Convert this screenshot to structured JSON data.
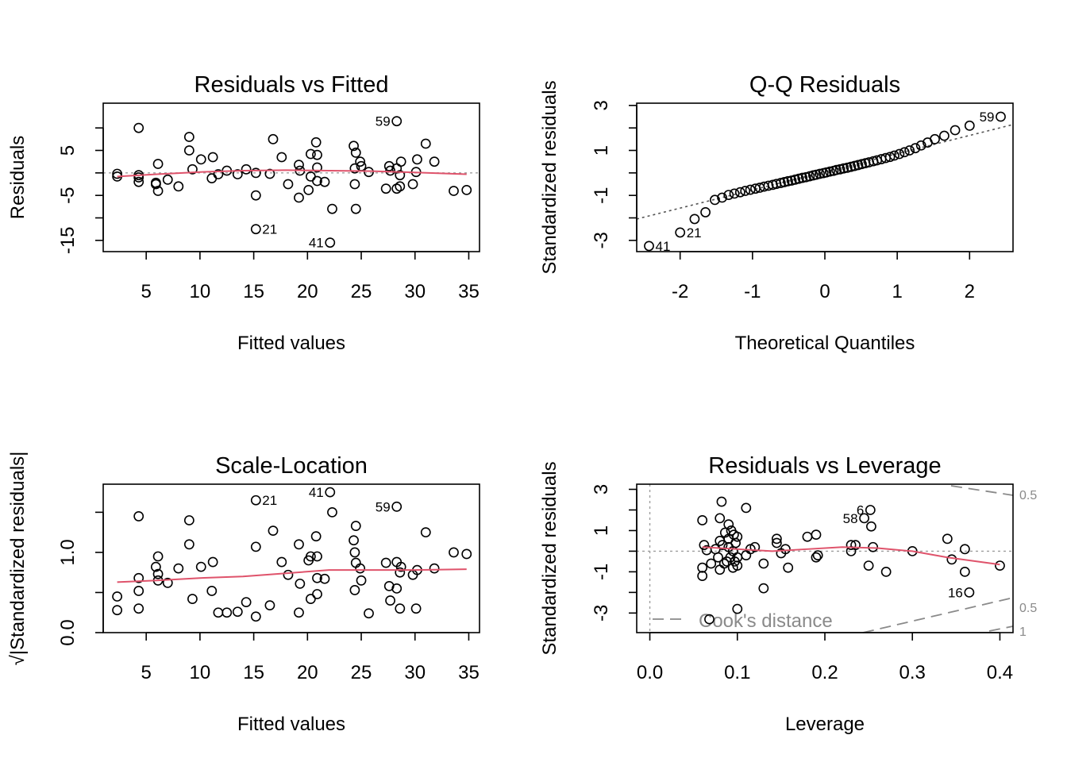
{
  "chart_data": [
    {
      "type": "scatter",
      "title": "Residuals vs Fitted",
      "xlabel": "Fitted values",
      "ylabel": "Residuals",
      "xlim": [
        1,
        36
      ],
      "ylim": [
        -17.5,
        15.5
      ],
      "xticks": [
        5,
        10,
        15,
        20,
        25,
        30,
        35
      ],
      "yticks": [
        -15,
        -10,
        -5,
        0,
        5,
        10
      ],
      "ytick_labels": [
        "-15",
        "",
        "-5",
        "",
        "5",
        ""
      ],
      "grid": false,
      "reference_line_y": 0,
      "points": [
        [
          2.3,
          -0.8
        ],
        [
          2.3,
          -0.2
        ],
        [
          4.3,
          10
        ],
        [
          4.3,
          -1
        ],
        [
          4.3,
          -2
        ],
        [
          4.3,
          -0.5
        ],
        [
          5.9,
          -2.5
        ],
        [
          5.9,
          -2.2
        ],
        [
          6.1,
          -4
        ],
        [
          6.1,
          2
        ],
        [
          7,
          -1.5
        ],
        [
          8,
          -3
        ],
        [
          9,
          8
        ],
        [
          9,
          5
        ],
        [
          9.3,
          0.8
        ],
        [
          10.1,
          3
        ],
        [
          11.1,
          -1.2
        ],
        [
          11.2,
          3.5
        ],
        [
          11.7,
          -0.3
        ],
        [
          12.5,
          0.5
        ],
        [
          13.5,
          -0.3
        ],
        [
          14.3,
          0.8
        ],
        [
          15.2,
          0
        ],
        [
          15.2,
          -5
        ],
        [
          16.5,
          -0.2
        ],
        [
          16.8,
          7.5
        ],
        [
          17.6,
          3.5
        ],
        [
          18.2,
          -2.5
        ],
        [
          19.2,
          -5.5
        ],
        [
          19.2,
          1.8
        ],
        [
          19.3,
          0.5
        ],
        [
          20.1,
          -3.8
        ],
        [
          20.3,
          4.2
        ],
        [
          20.3,
          -0.8
        ],
        [
          20.8,
          6.8
        ],
        [
          20.9,
          1.2
        ],
        [
          20.9,
          -1.8
        ],
        [
          20.9,
          4
        ],
        [
          21.6,
          -2
        ],
        [
          22.3,
          -8
        ],
        [
          24.3,
          6
        ],
        [
          24.4,
          1
        ],
        [
          24.4,
          -2.5
        ],
        [
          24.5,
          4.5
        ],
        [
          24.5,
          -8
        ],
        [
          24.9,
          2.5
        ],
        [
          25,
          1.5
        ],
        [
          25.7,
          0.2
        ],
        [
          27.3,
          -3.5
        ],
        [
          27.6,
          1.5
        ],
        [
          27.7,
          0.5
        ],
        [
          28.3,
          1
        ],
        [
          28.3,
          -3.5
        ],
        [
          28.6,
          -3
        ],
        [
          28.6,
          -0.5
        ],
        [
          28.7,
          2.5
        ],
        [
          29.8,
          -2.5
        ],
        [
          30.1,
          0.2
        ],
        [
          30.2,
          3
        ],
        [
          31,
          6.5
        ],
        [
          31.8,
          2.5
        ],
        [
          33.6,
          -4
        ],
        [
          34.8,
          -3.8
        ],
        [
          28.3,
          11.5
        ],
        [
          15.2,
          -12.5
        ],
        [
          22.1,
          -15.5
        ]
      ],
      "point_labels": [
        {
          "x": 28.3,
          "y": 11.5,
          "text": "59",
          "side": "left"
        },
        {
          "x": 15.2,
          "y": -12.5,
          "text": "21",
          "side": "right"
        },
        {
          "x": 22.1,
          "y": -15.5,
          "text": "41",
          "side": "left"
        }
      ],
      "smooth_line": {
        "x": [
          2.3,
          6,
          10,
          14,
          18,
          22,
          26,
          30,
          34.8
        ],
        "y": [
          -0.8,
          -0.3,
          0.2,
          0.5,
          0.6,
          0.5,
          0.4,
          0.1,
          -0.3
        ]
      }
    },
    {
      "type": "scatter",
      "title": "Q-Q Residuals",
      "xlabel": "Theoretical Quantiles",
      "ylabel": "Standardized residuals",
      "xlim": [
        -2.6,
        2.6
      ],
      "ylim": [
        -3.5,
        3.1
      ],
      "xticks": [
        -2,
        -1,
        0,
        1,
        2
      ],
      "yticks": [
        -3,
        -2,
        -1,
        0,
        1,
        2,
        3
      ],
      "ytick_labels": [
        "-3",
        "",
        "-1",
        "",
        "1",
        "",
        "3"
      ],
      "grid": false,
      "reference_line": {
        "x": [
          -2.6,
          2.6
        ],
        "y": [
          -2.05,
          2.15
        ]
      },
      "points": [
        [
          -2.43,
          -3.25
        ],
        [
          -2.0,
          -2.65
        ],
        [
          -1.8,
          -2.05
        ],
        [
          -1.65,
          -1.75
        ],
        [
          -1.52,
          -1.2
        ],
        [
          -1.42,
          -1.1
        ],
        [
          -1.33,
          -0.98
        ],
        [
          -1.25,
          -0.92
        ],
        [
          -1.17,
          -0.86
        ],
        [
          -1.1,
          -0.8
        ],
        [
          -1.03,
          -0.75
        ],
        [
          -0.96,
          -0.7
        ],
        [
          -0.9,
          -0.66
        ],
        [
          -0.84,
          -0.61
        ],
        [
          -0.78,
          -0.57
        ],
        [
          -0.72,
          -0.53
        ],
        [
          -0.67,
          -0.49
        ],
        [
          -0.61,
          -0.45
        ],
        [
          -0.56,
          -0.41
        ],
        [
          -0.51,
          -0.37
        ],
        [
          -0.46,
          -0.34
        ],
        [
          -0.41,
          -0.3
        ],
        [
          -0.36,
          -0.26
        ],
        [
          -0.31,
          -0.22
        ],
        [
          -0.26,
          -0.19
        ],
        [
          -0.21,
          -0.15
        ],
        [
          -0.16,
          -0.11
        ],
        [
          -0.12,
          -0.08
        ],
        [
          -0.07,
          -0.04
        ],
        [
          -0.02,
          -0.01
        ],
        [
          0.02,
          0.02
        ],
        [
          0.07,
          0.06
        ],
        [
          0.12,
          0.09
        ],
        [
          0.16,
          0.13
        ],
        [
          0.21,
          0.16
        ],
        [
          0.26,
          0.2
        ],
        [
          0.31,
          0.23
        ],
        [
          0.36,
          0.27
        ],
        [
          0.41,
          0.31
        ],
        [
          0.46,
          0.35
        ],
        [
          0.51,
          0.39
        ],
        [
          0.56,
          0.43
        ],
        [
          0.61,
          0.47
        ],
        [
          0.67,
          0.52
        ],
        [
          0.72,
          0.56
        ],
        [
          0.78,
          0.61
        ],
        [
          0.84,
          0.66
        ],
        [
          0.9,
          0.71
        ],
        [
          0.96,
          0.77
        ],
        [
          1.03,
          0.84
        ],
        [
          1.1,
          0.92
        ],
        [
          1.17,
          1.0
        ],
        [
          1.25,
          1.1
        ],
        [
          1.33,
          1.22
        ],
        [
          1.42,
          1.35
        ],
        [
          1.52,
          1.5
        ],
        [
          1.65,
          1.65
        ],
        [
          1.8,
          1.9
        ],
        [
          2.0,
          2.1
        ],
        [
          2.43,
          2.5
        ]
      ],
      "point_labels": [
        {
          "x": 2.43,
          "y": 2.5,
          "text": "59",
          "side": "left"
        },
        {
          "x": -2.0,
          "y": -2.65,
          "text": "21",
          "side": "right"
        },
        {
          "x": -2.43,
          "y": -3.25,
          "text": "41",
          "side": "right"
        }
      ]
    },
    {
      "type": "scatter",
      "title": "Scale-Location",
      "xlabel": "Fitted values",
      "ylabel": "√|Standardized residuals|",
      "xlim": [
        1,
        36
      ],
      "ylim": [
        0,
        1.85
      ],
      "xticks": [
        5,
        10,
        15,
        20,
        25,
        30,
        35
      ],
      "yticks": [
        0,
        0.5,
        1.0,
        1.5
      ],
      "ytick_labels": [
        "0.0",
        "",
        "1.0",
        ""
      ],
      "grid": false,
      "points": [
        [
          2.3,
          0.45
        ],
        [
          2.3,
          0.28
        ],
        [
          4.3,
          1.45
        ],
        [
          4.3,
          0.68
        ],
        [
          4.3,
          0.52
        ],
        [
          4.3,
          0.3
        ],
        [
          5.9,
          0.82
        ],
        [
          6.1,
          0.95
        ],
        [
          6.1,
          0.73
        ],
        [
          6.1,
          0.65
        ],
        [
          7,
          0.62
        ],
        [
          8,
          0.8
        ],
        [
          9,
          1.4
        ],
        [
          9,
          1.1
        ],
        [
          9.3,
          0.42
        ],
        [
          10.1,
          0.82
        ],
        [
          11.1,
          0.52
        ],
        [
          11.2,
          0.88
        ],
        [
          11.7,
          0.25
        ],
        [
          12.5,
          0.25
        ],
        [
          13.5,
          0.26
        ],
        [
          14.3,
          0.38
        ],
        [
          15.2,
          0.2
        ],
        [
          15.2,
          1.07
        ],
        [
          16.5,
          0.34
        ],
        [
          16.8,
          1.27
        ],
        [
          17.6,
          0.88
        ],
        [
          18.2,
          0.72
        ],
        [
          19.2,
          1.1
        ],
        [
          19.2,
          0.25
        ],
        [
          19.3,
          0.61
        ],
        [
          20.1,
          0.9
        ],
        [
          20.3,
          0.42
        ],
        [
          20.3,
          0.95
        ],
        [
          20.8,
          1.2
        ],
        [
          20.9,
          0.95
        ],
        [
          20.9,
          0.48
        ],
        [
          20.9,
          0.68
        ],
        [
          21.6,
          0.67
        ],
        [
          22.3,
          1.5
        ],
        [
          24.3,
          1.15
        ],
        [
          24.4,
          1.0
        ],
        [
          24.4,
          0.53
        ],
        [
          24.5,
          1.33
        ],
        [
          24.5,
          0.87
        ],
        [
          24.9,
          0.8
        ],
        [
          25,
          0.65
        ],
        [
          25.7,
          0.24
        ],
        [
          27.3,
          0.87
        ],
        [
          27.6,
          0.58
        ],
        [
          27.7,
          0.4
        ],
        [
          28.3,
          0.55
        ],
        [
          28.3,
          0.88
        ],
        [
          28.6,
          0.3
        ],
        [
          28.6,
          0.75
        ],
        [
          28.7,
          0.82
        ],
        [
          29.8,
          0.72
        ],
        [
          30.1,
          0.3
        ],
        [
          30.2,
          0.78
        ],
        [
          31,
          1.25
        ],
        [
          31.8,
          0.8
        ],
        [
          33.6,
          1.0
        ],
        [
          34.8,
          0.98
        ],
        [
          28.3,
          1.57
        ],
        [
          15.2,
          1.65
        ],
        [
          22.1,
          1.75
        ]
      ],
      "point_labels": [
        {
          "x": 28.3,
          "y": 1.57,
          "text": "59",
          "side": "left"
        },
        {
          "x": 15.2,
          "y": 1.65,
          "text": "21",
          "side": "right"
        },
        {
          "x": 22.1,
          "y": 1.75,
          "text": "41",
          "side": "left"
        }
      ],
      "smooth_line": {
        "x": [
          2.3,
          6,
          10,
          14,
          18,
          22,
          26,
          30,
          34.8
        ],
        "y": [
          0.63,
          0.65,
          0.68,
          0.7,
          0.74,
          0.78,
          0.78,
          0.78,
          0.79
        ]
      }
    },
    {
      "type": "scatter",
      "title": "Residuals vs Leverage",
      "xlabel": "Leverage",
      "ylabel": "Standardized residuals",
      "xlim": [
        -0.015,
        0.415
      ],
      "ylim": [
        -3.95,
        3.25
      ],
      "xticks": [
        0.0,
        0.1,
        0.2,
        0.3,
        0.4
      ],
      "xtick_labels": [
        "0.0",
        "0.1",
        "0.2",
        "0.3",
        "0.4"
      ],
      "yticks": [
        -3,
        -2,
        -1,
        0,
        1,
        2,
        3
      ],
      "ytick_labels": [
        "-3",
        "",
        "-1",
        "",
        "1",
        "",
        "3"
      ],
      "grid": false,
      "reference_line_y": 0,
      "reference_line_x": 0,
      "points": [
        [
          0.06,
          1.5
        ],
        [
          0.06,
          -0.8
        ],
        [
          0.06,
          -1.2
        ],
        [
          0.062,
          0.3
        ],
        [
          0.065,
          0.05
        ],
        [
          0.068,
          -3.3
        ],
        [
          0.07,
          -0.6
        ],
        [
          0.075,
          0.1
        ],
        [
          0.078,
          -0.3
        ],
        [
          0.08,
          0.5
        ],
        [
          0.08,
          1.6
        ],
        [
          0.08,
          -0.9
        ],
        [
          0.082,
          2.4
        ],
        [
          0.083,
          0.3
        ],
        [
          0.085,
          -0.6
        ],
        [
          0.086,
          0.9
        ],
        [
          0.088,
          -0.5
        ],
        [
          0.09,
          1.3
        ],
        [
          0.09,
          0.6
        ],
        [
          0.09,
          0.2
        ],
        [
          0.092,
          -0.3
        ],
        [
          0.093,
          1.0
        ],
        [
          0.095,
          -0.8
        ],
        [
          0.095,
          0.0
        ],
        [
          0.096,
          0.8
        ],
        [
          0.097,
          -0.5
        ],
        [
          0.098,
          0.4
        ],
        [
          0.1,
          -0.3
        ],
        [
          0.1,
          -0.7
        ],
        [
          0.1,
          -2.8
        ],
        [
          0.1,
          0.7
        ],
        [
          0.11,
          2.1
        ],
        [
          0.11,
          -0.2
        ],
        [
          0.115,
          0.1
        ],
        [
          0.12,
          0.2
        ],
        [
          0.13,
          -0.6
        ],
        [
          0.13,
          -1.8
        ],
        [
          0.145,
          0.6
        ],
        [
          0.145,
          0.4
        ],
        [
          0.15,
          -0.1
        ],
        [
          0.155,
          0.1
        ],
        [
          0.158,
          -0.8
        ],
        [
          0.18,
          0.7
        ],
        [
          0.19,
          -0.3
        ],
        [
          0.19,
          0.8
        ],
        [
          0.192,
          -0.2
        ],
        [
          0.23,
          0.3
        ],
        [
          0.23,
          0.0
        ],
        [
          0.235,
          0.3
        ],
        [
          0.245,
          1.6
        ],
        [
          0.25,
          -0.7
        ],
        [
          0.252,
          2.0
        ],
        [
          0.253,
          1.2
        ],
        [
          0.255,
          0.2
        ],
        [
          0.27,
          -1.0
        ],
        [
          0.3,
          0.0
        ],
        [
          0.34,
          0.6
        ],
        [
          0.345,
          -0.4
        ],
        [
          0.36,
          -1.0
        ],
        [
          0.36,
          0.1
        ],
        [
          0.365,
          -2.0
        ],
        [
          0.4,
          -0.7
        ]
      ],
      "point_labels": [
        {
          "x": 0.252,
          "y": 2.0,
          "text": "6",
          "side": "left"
        },
        {
          "x": 0.245,
          "y": 1.6,
          "text": "58",
          "side": "left"
        },
        {
          "x": 0.365,
          "y": -2.0,
          "text": "16",
          "side": "left"
        }
      ],
      "smooth_line": {
        "x": [
          0.06,
          0.1,
          0.14,
          0.18,
          0.22,
          0.26,
          0.3,
          0.34,
          0.4
        ],
        "y": [
          0.2,
          0.1,
          0.0,
          0.1,
          0.2,
          0.15,
          0.0,
          -0.3,
          -0.65
        ]
      },
      "cooks_distance": {
        "label": "Cook's distance",
        "levels": [
          {
            "text": "0.5",
            "value": 0.5
          },
          {
            "text": "0.5",
            "value": 0.5
          },
          {
            "text": "1",
            "value": 1
          }
        ]
      }
    }
  ]
}
